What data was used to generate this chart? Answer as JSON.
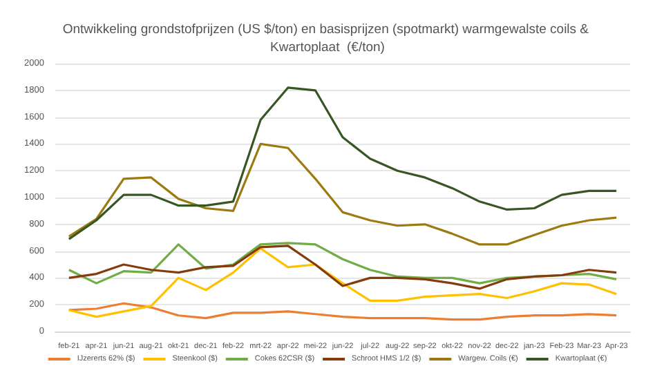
{
  "chart_data": {
    "type": "line",
    "title": "Ontwikkeling grondstofprijzen (US $/ton) en basisprijzen (spotmarkt) warmgewalste coils & Kwartoplaat  (€/ton)",
    "categories": [
      "feb-21",
      "apr-21",
      "jun-21",
      "aug-21",
      "okt-21",
      "dec-21",
      "feb-22",
      "mrt-22",
      "apr-22",
      "mei-22",
      "jun-22",
      "jul-22",
      "aug-22",
      "sep-22",
      "okt-22",
      "nov-22",
      "dec-22",
      "jan-23",
      "Feb-23",
      "Mar-23",
      "Apr-23"
    ],
    "series": [
      {
        "name": "IJzererts 62% ($)",
        "color": "#ed7d31",
        "values": [
          160,
          170,
          210,
          180,
          120,
          100,
          140,
          140,
          150,
          130,
          110,
          100,
          100,
          100,
          90,
          90,
          110,
          120,
          120,
          130,
          120
        ]
      },
      {
        "name": "Steenkool ($)",
        "color": "#ffc000",
        "values": [
          160,
          110,
          150,
          190,
          400,
          310,
          440,
          620,
          480,
          500,
          360,
          230,
          230,
          260,
          270,
          280,
          250,
          300,
          360,
          350,
          280
        ]
      },
      {
        "name": "Cokes 62CSR ($)",
        "color": "#70ad47",
        "values": [
          460,
          360,
          450,
          440,
          650,
          470,
          500,
          650,
          660,
          650,
          540,
          460,
          410,
          400,
          400,
          360,
          400,
          410,
          420,
          430,
          390
        ]
      },
      {
        "name": "Schroot HMS 1/2 ($)",
        "color": "#843c0c",
        "values": [
          400,
          430,
          500,
          460,
          440,
          480,
          490,
          630,
          640,
          500,
          340,
          400,
          400,
          390,
          360,
          320,
          390,
          410,
          420,
          460,
          440
        ]
      },
      {
        "name": "Wargew. Coils (€)",
        "color": "#9c7a10",
        "values": [
          710,
          840,
          1140,
          1150,
          990,
          920,
          900,
          1400,
          1370,
          1140,
          890,
          830,
          790,
          800,
          730,
          650,
          650,
          720,
          790,
          830,
          850
        ]
      },
      {
        "name": "Kwartoplaat (€)",
        "color": "#375623",
        "values": [
          690,
          830,
          1020,
          1020,
          940,
          940,
          970,
          1580,
          1820,
          1800,
          1450,
          1290,
          1200,
          1150,
          1070,
          970,
          910,
          920,
          1020,
          1050,
          1050
        ]
      }
    ],
    "ylim": [
      0,
      2000
    ],
    "yticks": [
      0,
      200,
      400,
      600,
      800,
      1000,
      1200,
      1400,
      1600,
      1800,
      2000
    ],
    "grid": "y",
    "legend": "bottom",
    "marker": "none",
    "line_style": "solid"
  }
}
